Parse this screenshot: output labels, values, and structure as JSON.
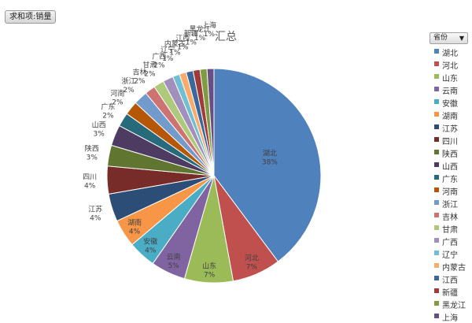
{
  "pivot_field_button": "求和项:销量",
  "legend_filter": {
    "label": "省份",
    "caret_icon": "dropdown-arrow-icon"
  },
  "chart_data": {
    "type": "pie",
    "title": "汇总",
    "legend_position": "right",
    "categories": [
      "湖北",
      "河北",
      "山东",
      "云南",
      "安徽",
      "湖南",
      "江苏",
      "四川",
      "陕西",
      "山西",
      "广东",
      "河南",
      "浙江",
      "吉林",
      "甘肃",
      "广西",
      "辽宁",
      "内蒙古",
      "江西",
      "新疆",
      "黑龙江",
      "上海"
    ],
    "values": [
      38,
      7,
      7,
      5,
      4,
      4,
      4,
      4,
      3,
      3,
      2,
      2,
      2,
      1.5,
      1.5,
      1.5,
      1,
      1,
      1,
      1,
      1,
      1
    ],
    "labels": [
      "38%",
      "7%",
      "7%",
      "5%",
      "4%",
      "4%",
      "4%",
      "4%",
      "3%",
      "3%",
      "2%",
      "2%",
      "2%",
      "2%",
      "2%",
      "2%",
      "1%",
      "1%",
      "1%",
      "1%",
      "1%",
      "1%"
    ],
    "colors": [
      "#4F81BD",
      "#C0504D",
      "#9BBB59",
      "#8064A2",
      "#4BACC6",
      "#F79646",
      "#2C4D75",
      "#772C2A",
      "#5F7530",
      "#4D3B62",
      "#276A7C",
      "#B65708",
      "#729ACA",
      "#CD7371",
      "#AFC97A",
      "#A18FBC",
      "#6FBED3",
      "#F9AB6B",
      "#3A679C",
      "#9F3B38",
      "#7F9C40",
      "#674F85"
    ],
    "label_color": "#404040"
  }
}
